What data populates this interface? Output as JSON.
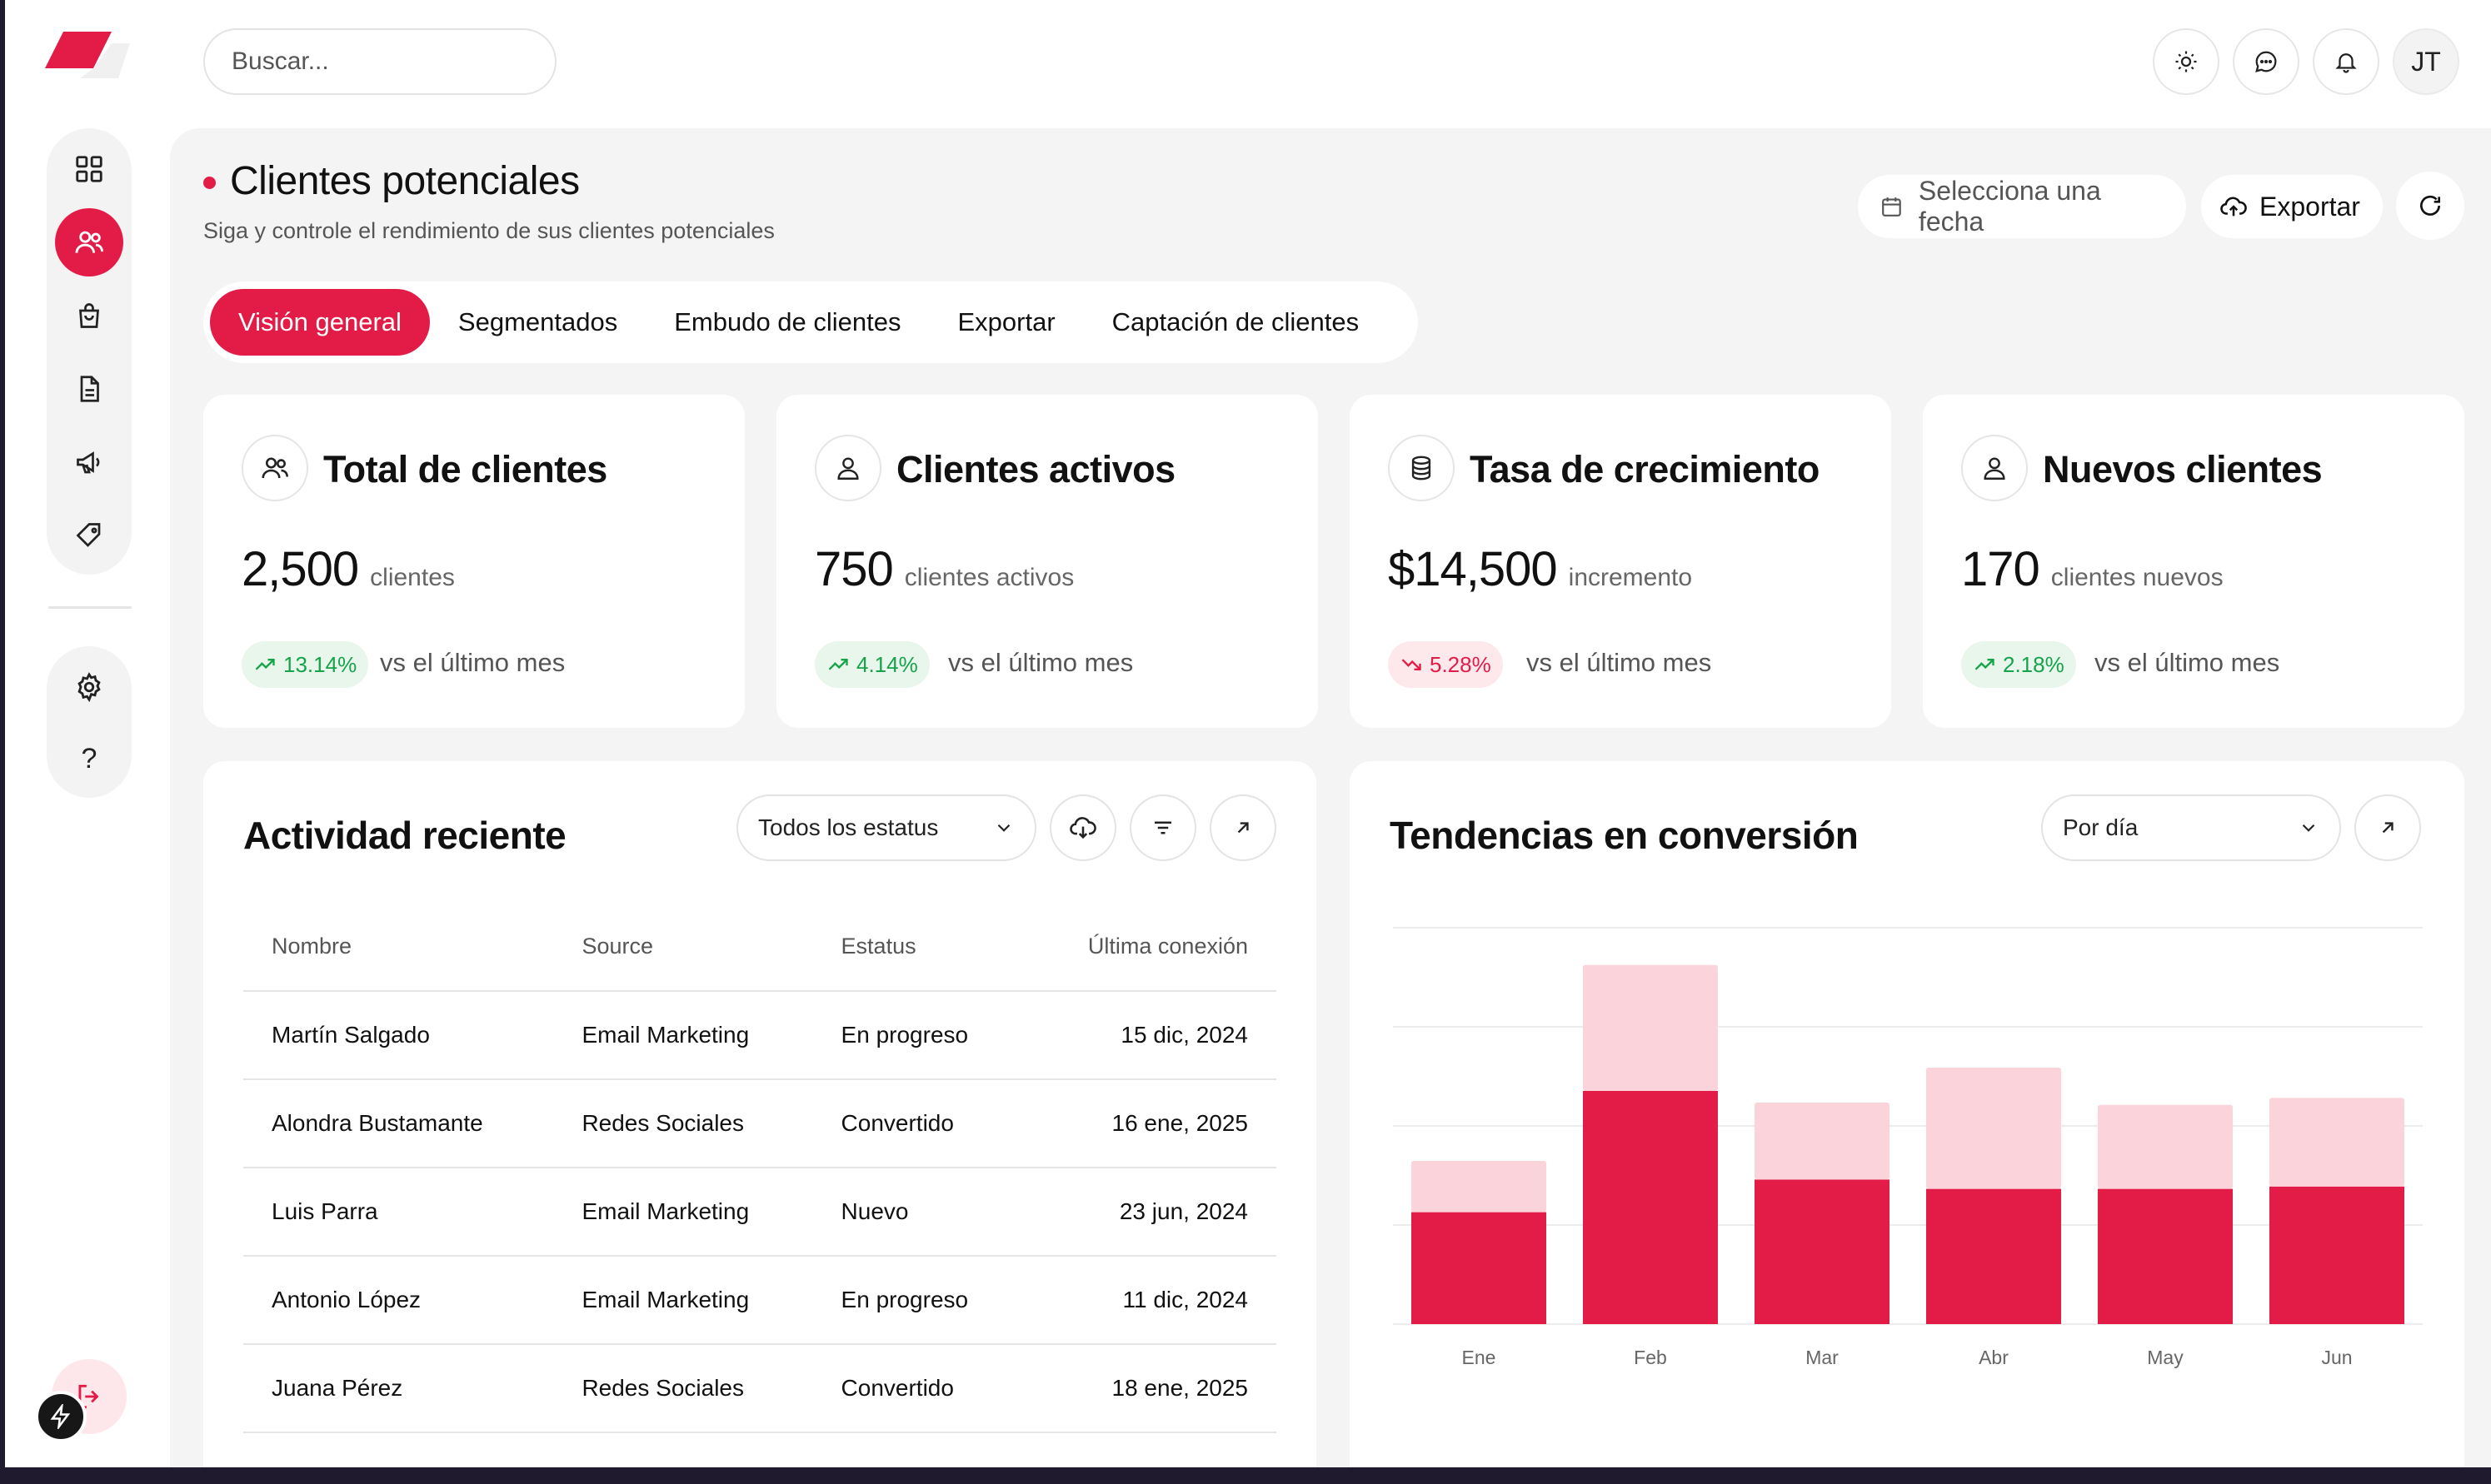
{
  "search": {
    "placeholder": "Buscar..."
  },
  "topbar": {
    "avatar_initials": "JT"
  },
  "sidebar": {
    "items": [
      {
        "name": "dashboard",
        "icon": "grid-icon",
        "active": false
      },
      {
        "name": "clients",
        "icon": "users-icon",
        "active": true
      },
      {
        "name": "shop",
        "icon": "shopping-bag-icon",
        "active": false
      },
      {
        "name": "documents",
        "icon": "document-icon",
        "active": false
      },
      {
        "name": "campaigns",
        "icon": "megaphone-icon",
        "active": false
      },
      {
        "name": "tags",
        "icon": "tag-icon",
        "active": false
      }
    ],
    "bottom_items": [
      {
        "name": "settings",
        "icon": "gear-icon"
      },
      {
        "name": "help",
        "icon": "help-icon",
        "glyph": "?"
      }
    ]
  },
  "page": {
    "title": "Clientes potenciales",
    "subtitle": "Siga y controle el rendimiento de sus clientes potenciales",
    "date_button": "Selecciona una fecha",
    "export_button": "Exportar"
  },
  "tabs": [
    {
      "label": "Visión general",
      "active": true
    },
    {
      "label": "Segmentados",
      "active": false
    },
    {
      "label": "Embudo de clientes",
      "active": false
    },
    {
      "label": "Exportar",
      "active": false
    },
    {
      "label": "Captación de clientes",
      "active": false
    }
  ],
  "stats": [
    {
      "title": "Total de clientes",
      "value": "2,500",
      "unit": "clientes",
      "delta": "13.14%",
      "trend": "up",
      "vs": "vs el último mes",
      "icon": "users-icon"
    },
    {
      "title": "Clientes activos",
      "value": "750",
      "unit": "clientes activos",
      "delta": "4.14%",
      "trend": "up",
      "vs": "vs el último mes",
      "icon": "user-icon"
    },
    {
      "title": "Tasa de crecimiento",
      "value": "$14,500",
      "unit": "incremento",
      "delta": "5.28%",
      "trend": "down",
      "vs": "vs el último mes",
      "icon": "database-icon"
    },
    {
      "title": "Nuevos clientes",
      "value": "170",
      "unit": "clientes nuevos",
      "delta": "2.18%",
      "trend": "up",
      "vs": "vs el último mes",
      "icon": "user-icon"
    }
  ],
  "activity": {
    "title": "Actividad reciente",
    "filter_value": "Todos los estatus",
    "columns": [
      "Nombre",
      "Source",
      "Estatus",
      "Última conexión"
    ],
    "rows": [
      [
        "Martín Salgado",
        "Email Marketing",
        "En progreso",
        "15 dic, 2024"
      ],
      [
        "Alondra Bustamante",
        "Redes Sociales",
        "Convertido",
        "16 ene, 2025"
      ],
      [
        "Luis Parra",
        "Email Marketing",
        "Nuevo",
        "23 jun, 2024"
      ],
      [
        "Antonio López",
        "Email Marketing",
        "En progreso",
        "11 dic, 2024"
      ],
      [
        "Juana Pérez",
        "Redes Sociales",
        "Convertido",
        "18 ene, 2025"
      ]
    ]
  },
  "conversion": {
    "title": "Tendencias en conversión",
    "period_value": "Por día"
  },
  "colors": {
    "accent": "#e31c47",
    "accent_light": "#fbd3da",
    "up": "#16a34a"
  },
  "chart_data": {
    "type": "bar",
    "stacked": true,
    "categories": [
      "Ene",
      "Feb",
      "Mar",
      "Abr",
      "May",
      "Jun"
    ],
    "series": [
      {
        "values": [
          48,
          100,
          62,
          58,
          58,
          59
        ],
        "color": "#e31c47"
      },
      {
        "values": [
          22,
          54,
          33,
          52,
          36,
          38
        ],
        "color": "#fbd3da"
      }
    ],
    "ylim": [
      0,
      170
    ],
    "grid": true
  }
}
